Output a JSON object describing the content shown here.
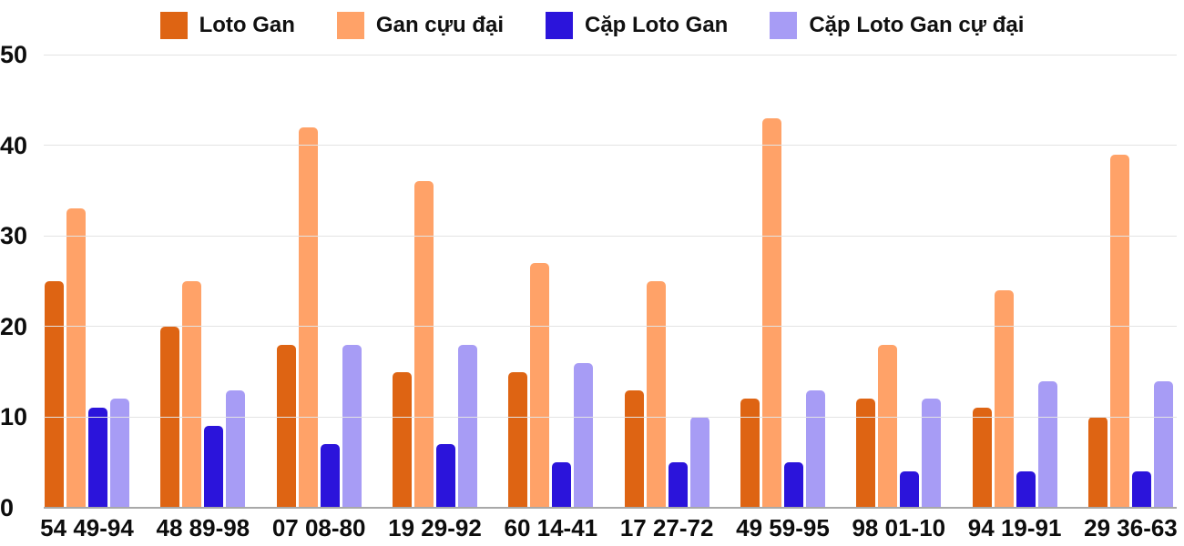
{
  "ui": {
    "background_color": "#ffffff",
    "grid_color": "#e3e3e3",
    "axis_line_color": "#a8a8a8",
    "text_color": "#0d0d0d"
  },
  "chart_data": {
    "type": "bar",
    "title": "",
    "xlabel": "",
    "ylabel": "",
    "ylim": [
      0,
      50
    ],
    "y_ticks": [
      0,
      10,
      20,
      30,
      40,
      50
    ],
    "grid": true,
    "legend_position": "top",
    "categories": [
      "54 49-94",
      "48 89-98",
      "07 08-80",
      "19 29-92",
      "60 14-41",
      "17 27-72",
      "49 59-95",
      "98 01-10",
      "94 19-91",
      "29 36-63"
    ],
    "series": [
      {
        "name": "Loto Gan",
        "color": "#de6413",
        "values": [
          25,
          20,
          18,
          15,
          15,
          13,
          12,
          12,
          11,
          10
        ]
      },
      {
        "name": "Gan cựu đại",
        "color": "#ffa268",
        "values": [
          33,
          25,
          42,
          36,
          27,
          25,
          43,
          18,
          24,
          39
        ]
      },
      {
        "name": "Cặp Loto Gan",
        "color": "#2b14db",
        "values": [
          11,
          9,
          7,
          7,
          5,
          5,
          5,
          4,
          4,
          4
        ]
      },
      {
        "name": "Cặp Loto Gan cự đại",
        "color": "#a79cf5",
        "values": [
          12,
          13,
          18,
          18,
          16,
          10,
          13,
          12,
          14,
          14
        ]
      }
    ]
  }
}
